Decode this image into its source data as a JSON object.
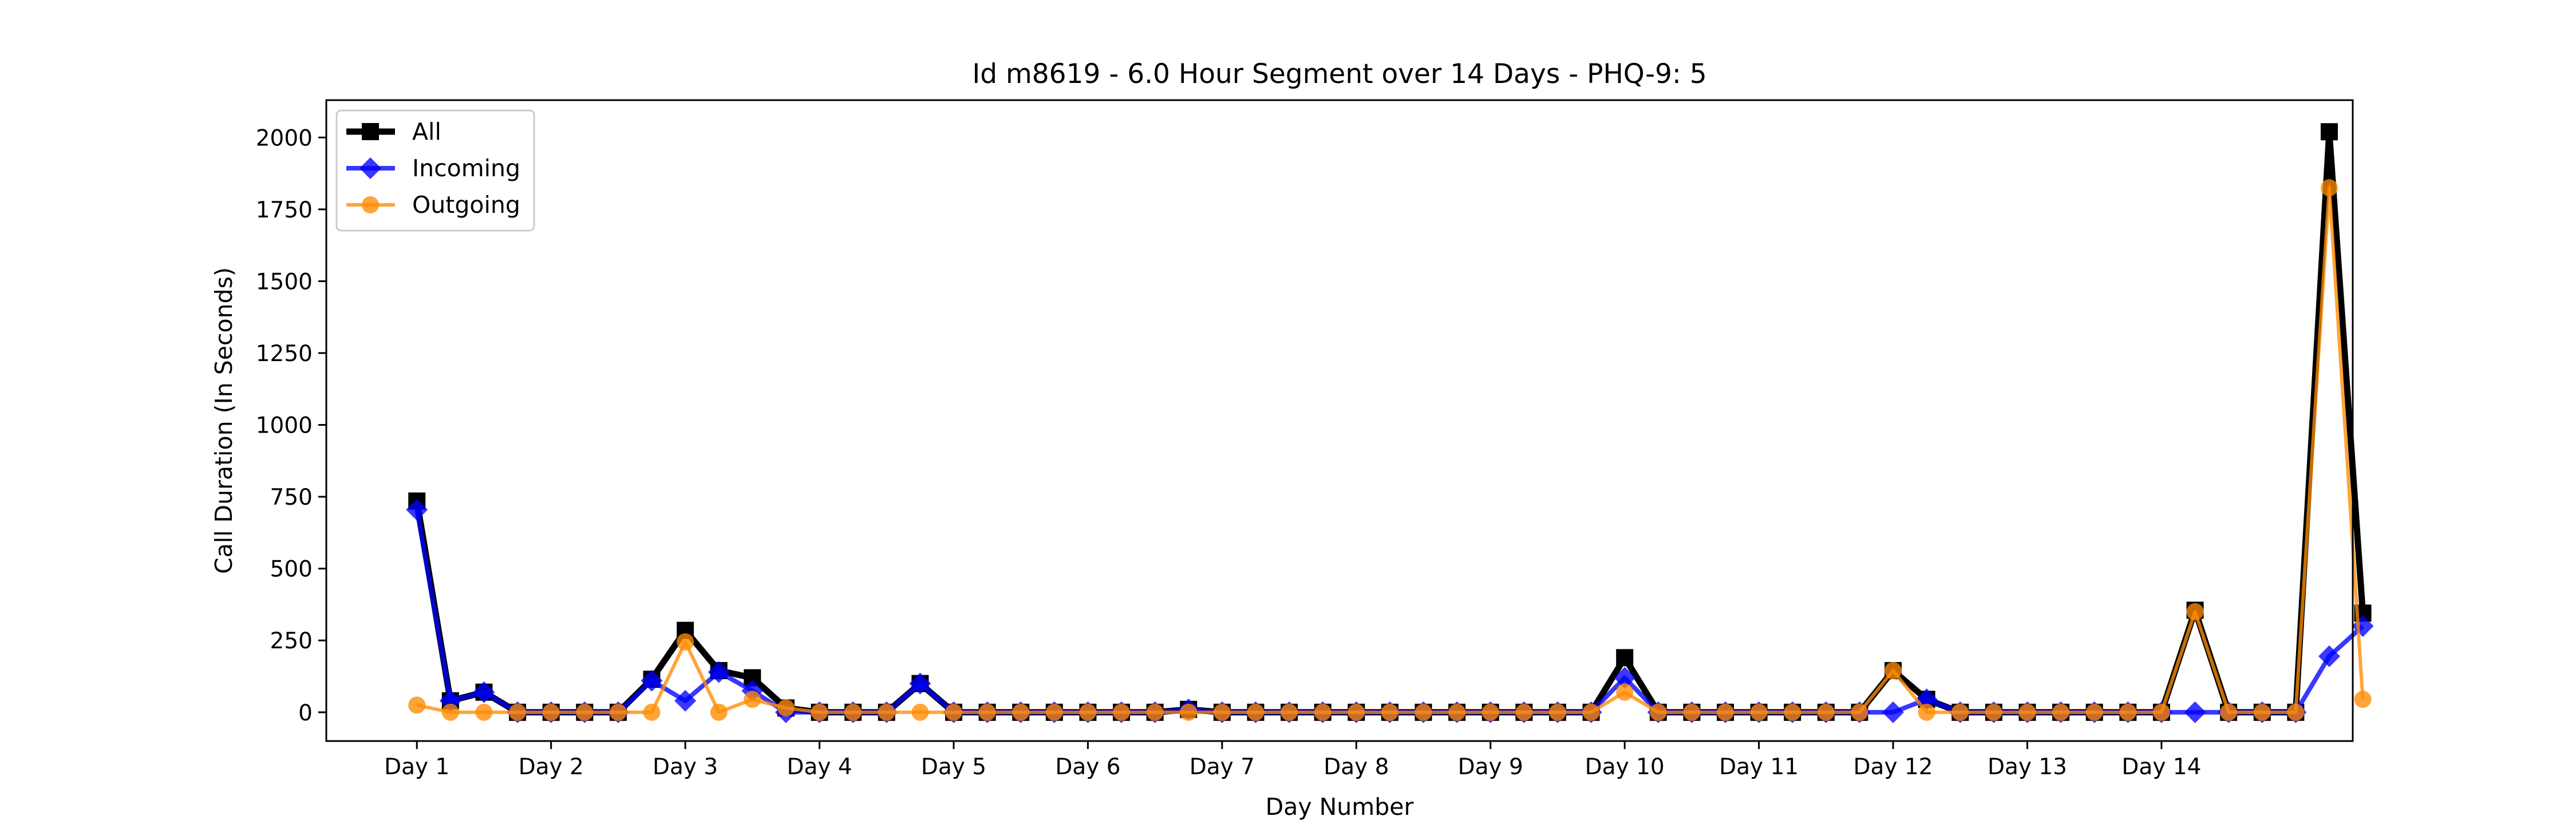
{
  "chart_data": {
    "type": "line",
    "title": "Id m8619 - 6.0 Hour Segment over 14 Days - PHQ-9: 5",
    "xlabel": "Day Number",
    "ylabel": "Call Duration (In Seconds)",
    "ylim": [
      -100,
      2130
    ],
    "xlim": [
      -2.7,
      57.7
    ],
    "yticks": [
      0,
      250,
      500,
      750,
      1000,
      1250,
      1500,
      1750,
      2000
    ],
    "xtick_positions": [
      0,
      4,
      8,
      12,
      16,
      20,
      24,
      28,
      32,
      36,
      40,
      44,
      48,
      52
    ],
    "xtick_labels": [
      "Day 1",
      "Day 2",
      "Day 3",
      "Day 4",
      "Day 5",
      "Day 6",
      "Day 7",
      "Day 8",
      "Day 9",
      "Day 10",
      "Day 11",
      "Day 12",
      "Day 13",
      "Day 14"
    ],
    "grid": false,
    "legend_position": "top-left",
    "series": [
      {
        "name": "All",
        "color": "#000000",
        "marker": "square",
        "values": [
          735,
          40,
          70,
          0,
          0,
          0,
          0,
          115,
          285,
          145,
          120,
          15,
          0,
          0,
          0,
          100,
          0,
          0,
          0,
          0,
          0,
          0,
          0,
          10,
          0,
          0,
          0,
          0,
          0,
          0,
          0,
          0,
          0,
          0,
          0,
          0,
          190,
          0,
          0,
          0,
          0,
          0,
          0,
          0,
          145,
          45,
          0,
          0,
          0,
          0,
          0,
          0,
          0,
          355,
          0,
          0,
          0,
          2020,
          345
        ]
      },
      {
        "name": "Incoming",
        "color": "#0000ff",
        "marker": "diamond",
        "values": [
          705,
          40,
          70,
          0,
          0,
          0,
          0,
          110,
          40,
          140,
          75,
          0,
          0,
          0,
          0,
          100,
          0,
          0,
          0,
          0,
          0,
          0,
          0,
          10,
          0,
          0,
          0,
          0,
          0,
          0,
          0,
          0,
          0,
          0,
          0,
          0,
          120,
          0,
          0,
          0,
          0,
          0,
          0,
          0,
          0,
          45,
          0,
          0,
          0,
          0,
          0,
          0,
          0,
          0,
          0,
          0,
          0,
          195,
          300
        ]
      },
      {
        "name": "Outgoing",
        "color": "#ff8c00",
        "marker": "circle",
        "values": [
          25,
          0,
          0,
          0,
          0,
          0,
          0,
          0,
          245,
          0,
          45,
          15,
          0,
          0,
          0,
          0,
          0,
          0,
          0,
          0,
          0,
          0,
          0,
          0,
          0,
          0,
          0,
          0,
          0,
          0,
          0,
          0,
          0,
          0,
          0,
          0,
          70,
          0,
          0,
          0,
          0,
          0,
          0,
          0,
          145,
          0,
          0,
          0,
          0,
          0,
          0,
          0,
          0,
          350,
          0,
          0,
          0,
          1825,
          45
        ]
      }
    ]
  }
}
